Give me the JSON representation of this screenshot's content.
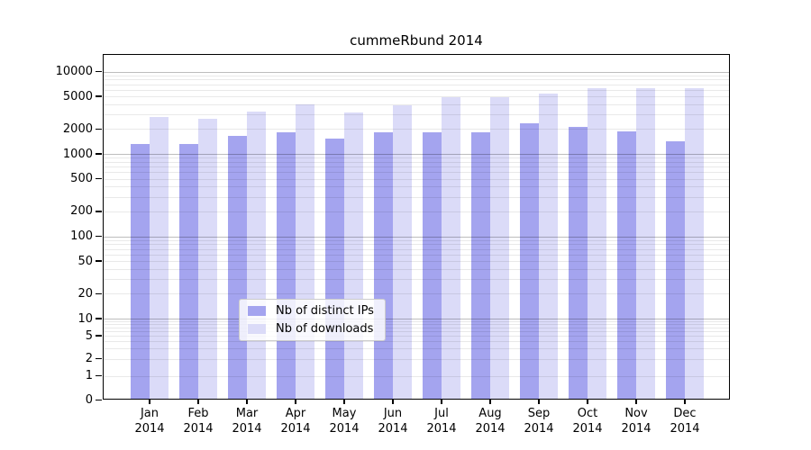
{
  "title": "cummeRbund 2014",
  "chart_data": {
    "type": "bar",
    "title": "cummeRbund 2014",
    "categories": [
      "Jan 2014",
      "Feb 2014",
      "Mar 2014",
      "Apr 2014",
      "May 2014",
      "Jun 2014",
      "Jul 2014",
      "Aug 2014",
      "Sep 2014",
      "Oct 2014",
      "Nov 2014",
      "Dec 2014"
    ],
    "series": [
      {
        "name": "Nb of distinct IPs",
        "color": "#a4a4ef",
        "values": [
          1260,
          1270,
          1590,
          1720,
          1460,
          1730,
          1730,
          1740,
          2220,
          2040,
          1800,
          1360
        ]
      },
      {
        "name": "Nb of downloads",
        "color": "#dbdbf8",
        "values": [
          2670,
          2560,
          3080,
          3820,
          3060,
          3730,
          4610,
          4640,
          5130,
          5970,
          5950,
          6010
        ]
      }
    ],
    "yticks": [
      0,
      1,
      2,
      5,
      10,
      20,
      50,
      100,
      200,
      500,
      1000,
      2000,
      5000,
      10000
    ],
    "ylim": [
      0,
      16000
    ],
    "yscale": "log",
    "xlabel": "",
    "ylabel": "",
    "grid": true,
    "legend_position": "lower center"
  },
  "legend": {
    "items": [
      {
        "label": "Nb of distinct IPs",
        "color": "#a4a4ef"
      },
      {
        "label": "Nb of downloads",
        "color": "#dbdbf8"
      }
    ]
  }
}
